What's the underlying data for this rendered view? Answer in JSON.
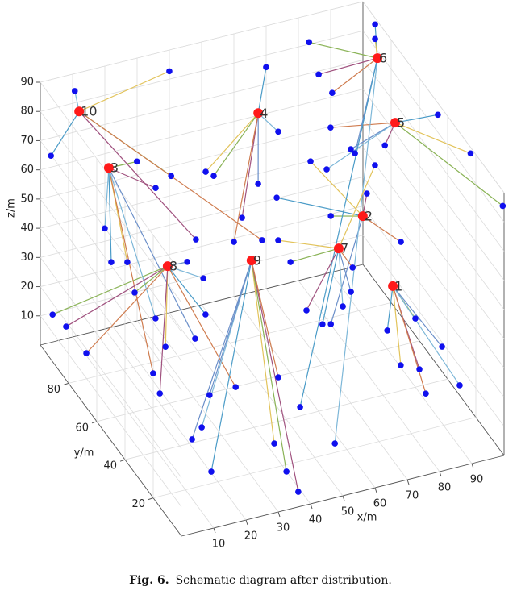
{
  "chart_data": {
    "type": "scatter3d",
    "xlabel": "x/m",
    "ylabel": "y/m",
    "zlabel": "z/m",
    "xlim": [
      0,
      100
    ],
    "ylim": [
      0,
      100
    ],
    "zlim": [
      0,
      90
    ],
    "xticks": [
      10,
      20,
      30,
      40,
      50,
      60,
      70,
      80,
      90
    ],
    "yticks": [
      20,
      40,
      60,
      80
    ],
    "zticks": [
      10,
      20,
      30,
      40,
      50,
      60,
      70,
      80,
      90
    ],
    "grid": true,
    "head_color": "#ff1a1a",
    "member_color": "#1010ee",
    "line_colors": [
      "#4a9bc7",
      "#e2c35a",
      "#8ab356",
      "#a0527f",
      "#cf7c4f",
      "#6b8fc9",
      "#7db7d8"
    ],
    "clusters": [
      {
        "label": "1",
        "head": {
          "x": 86.7,
          "y": 48.4,
          "z": 30
        },
        "members": {
          "x": [
            81.3,
            81.1,
            90,
            84.7,
            84.5,
            93.9,
            92.8
          ],
          "y": [
            40,
            30,
            40,
            25,
            20,
            30,
            15
          ],
          "z": [
            21.8,
            16.5,
            23.5,
            17.4,
            12.4,
            19.3,
            16.2
          ]
        }
      },
      {
        "label": "2",
        "head": {
          "x": 83.9,
          "y": 63.3,
          "z": 45
        },
        "members": {
          "x": [
            68.9,
            77.2,
            79.1,
            88.1,
            89.9,
            63.8
          ],
          "y": [
            90,
            85,
            75,
            70,
            50,
            40
          ],
          "z": [
            38,
            51.4,
            38.7,
            47.2,
            43.2,
            28.8
          ]
        }
      },
      {
        "label": "3",
        "head": {
          "x": 18.3,
          "y": 93.3,
          "z": 60
        },
        "members": {
          "x": [
            17.8,
            19.8,
            22.6,
            23.4,
            27,
            10.9,
            26.1,
            22.6
          ],
          "y": [
            95,
            95,
            90,
            85,
            80,
            45,
            50,
            70
          ],
          "z": [
            38.3,
            26.2,
            28.7,
            66.2,
            59.4,
            23.3,
            27.7,
            22.5
          ]
        }
      },
      {
        "label": "4",
        "head": {
          "x": 56.7,
          "y": 75.2,
          "z": 80
        },
        "members": {
          "x": [
            67.8,
            44.7,
            45,
            51.6,
            46.9,
            54.4,
            62.8
          ],
          "y": [
            95,
            85,
            80,
            75,
            70,
            70,
            75
          ],
          "z": [
            79.7,
            56.8,
            58.6,
            45.7,
            42,
            59.8,
            72.1
          ]
        }
      },
      {
        "label": "5",
        "head": {
          "x": 93.5,
          "y": 62.3,
          "z": 75
        },
        "members": {
          "x": [
            99.6,
            99.5,
            99.8,
            89.3,
            85.6,
            87.5,
            82.2
          ],
          "y": [
            46,
            22.6,
            0.5,
            60,
            90,
            80,
            85
          ],
          "z": [
            86.7,
            88.8,
            85.2,
            69.9,
            57.4,
            56,
            47.3
          ]
        }
      },
      {
        "label": "6",
        "head": {
          "x": 94,
          "y": 76,
          "z": 88
        },
        "members": {
          "x": [
            99.4,
            97.2,
            81.1,
            81.9,
            83.9,
            86.6,
            56.3,
            49.9
          ],
          "y": [
            90,
            85,
            95,
            90,
            85,
            75,
            20,
            30
          ],
          "z": [
            88.9,
            87.8,
            84.6,
            76.6,
            73,
            58.1,
            3.1,
            10.8
          ]
        }
      },
      {
        "label": "7",
        "head": {
          "x": 77,
          "y": 64.6,
          "z": 35
        },
        "members": {
          "x": [
            65,
            66.6,
            65,
            79.3,
            76.6,
            71.9,
            63.4,
            92.8
          ],
          "y": [
            80,
            75,
            60,
            60,
            55,
            50,
            45,
            75
          ],
          "z": [
            31,
            26.4,
            20.1,
            30.8,
            26.5,
            26.1,
            25.6,
            52.3
          ]
        }
      },
      {
        "label": "8",
        "head": {
          "x": 26,
          "y": 69.2,
          "z": 40
        },
        "members": {
          "x": [
            3.8,
            5.8,
            7.7,
            36.8,
            39.6,
            38.1,
            21.3,
            20.5,
            10.8,
            34.3
          ],
          "y": [
            100,
            95,
            85,
            80,
            75,
            70,
            60,
            80,
            40,
            40
          ],
          "z": [
            9.4,
            8,
            4.9,
            31.4,
            28.3,
            19.6,
            19.7,
            25.4,
            19.7,
            15.4
          ]
        }
      },
      {
        "label": "9",
        "head": {
          "x": 57.5,
          "y": 81.8,
          "z": 25
        },
        "members": {
          "x": [
            16.4,
            21.6,
            18,
            39.7,
            39.1,
            38.4,
            47.5,
            28.4
          ],
          "y": [
            30,
            35,
            20,
            25,
            15,
            5,
            40,
            45
          ],
          "z": [
            9,
            8.4,
            4,
            4.4,
            1.5,
            1.3,
            15.1,
            11
          ]
        }
      },
      {
        "label": "10",
        "head": {
          "x": 11.3,
          "y": 98.3,
          "z": 78
        },
        "members": {
          "x": [
            8.5,
            3.3,
            37.8,
            31.8,
            35.1,
            57.8
          ],
          "y": [
            95,
            100,
            95,
            80,
            70,
            75
          ],
          "z": [
            87.9,
            63.9,
            86.6,
            62.2,
            46.1,
            36.3
          ]
        }
      }
    ],
    "caption_label": "Fig. 6.",
    "caption_text": "Schematic diagram after distribution."
  }
}
